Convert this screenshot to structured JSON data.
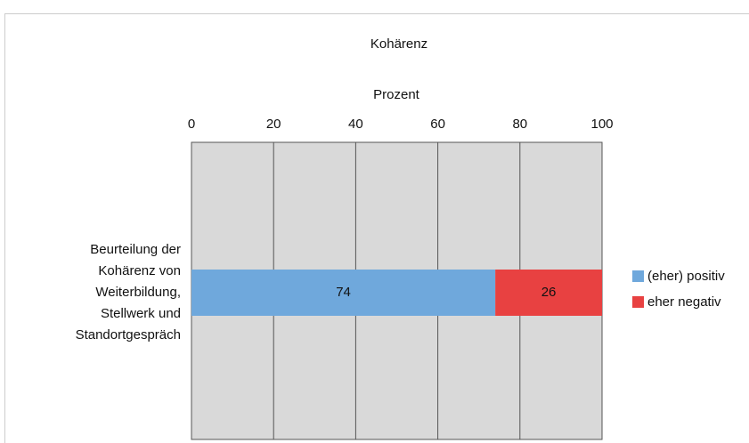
{
  "chart_data": {
    "type": "bar",
    "orientation": "horizontal",
    "stacked": true,
    "title": "Kohärenz",
    "x_label": "Prozent",
    "categories": [
      "Beurteilung der Kohärenz von Weiterbildung, Stellwerk und Standortgespräch"
    ],
    "series": [
      {
        "name": "(eher) positiv",
        "color": "#6fa8dc",
        "values": [
          74
        ]
      },
      {
        "name": "eher negativ",
        "color": "#e84141",
        "values": [
          26
        ]
      }
    ],
    "xlim": [
      0,
      100
    ],
    "xticks": [
      0,
      20,
      40,
      60,
      80,
      100
    ],
    "grid": true,
    "legend": "right"
  }
}
